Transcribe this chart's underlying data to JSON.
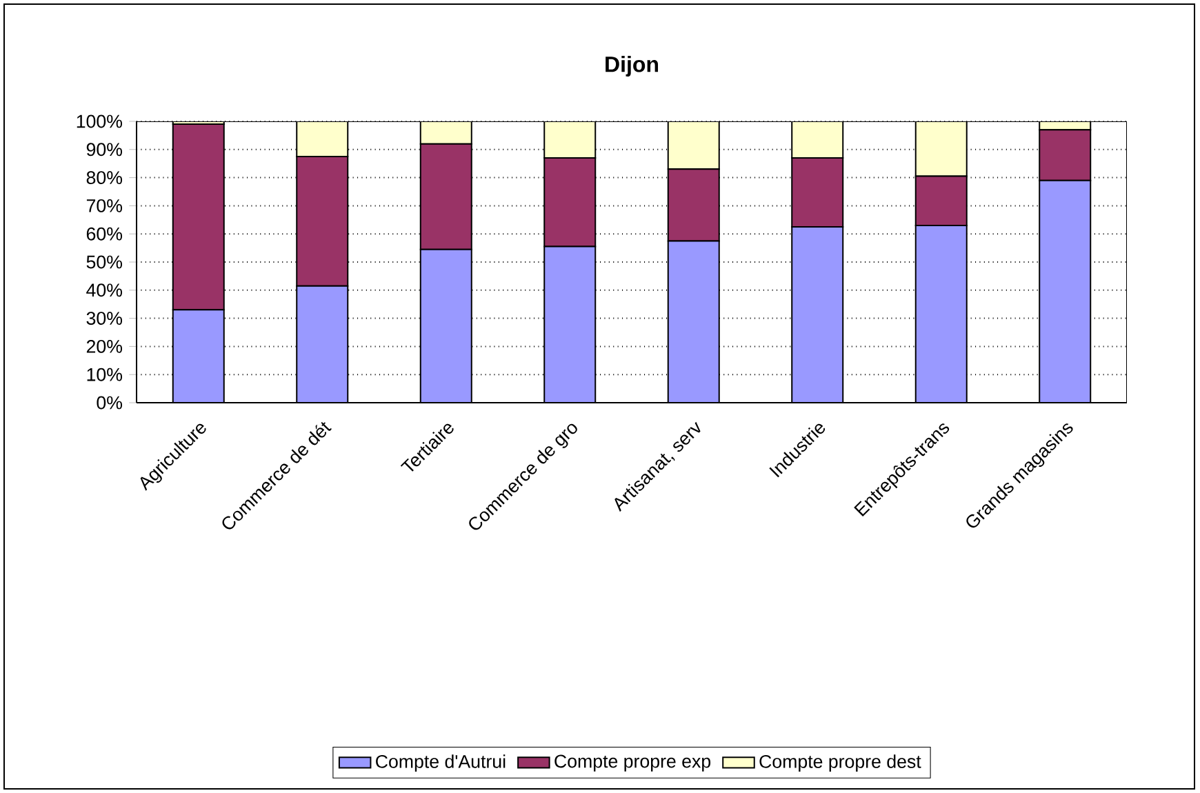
{
  "chart_data": {
    "type": "bar",
    "title": "Dijon",
    "stacked": true,
    "categories": [
      "Agriculture",
      "Commerce de dét",
      "Tertiaire",
      "Commerce de gro",
      "Artisanat, serv",
      "Industrie",
      "Entrepôts-trans",
      "Grands magasins"
    ],
    "series": [
      {
        "name": "Compte d'Autrui",
        "color": "#9999ff",
        "values": [
          33,
          41.5,
          54.5,
          55.5,
          57.5,
          62.5,
          63,
          79
        ]
      },
      {
        "name": "Compte propre exp",
        "color": "#993366",
        "values": [
          66,
          46,
          37.5,
          31.5,
          25.5,
          24.5,
          17.5,
          18
        ]
      },
      {
        "name": "Compte propre dest",
        "color": "#ffffcc",
        "values": [
          1,
          12.5,
          8,
          13,
          17,
          13,
          19.5,
          3
        ]
      }
    ],
    "ylim": [
      0,
      100
    ],
    "yticks": [
      {
        "value": 0,
        "label": "0%"
      },
      {
        "value": 10,
        "label": "10%"
      },
      {
        "value": 20,
        "label": "20%"
      },
      {
        "value": 30,
        "label": "30%"
      },
      {
        "value": 40,
        "label": "40%"
      },
      {
        "value": 50,
        "label": "50%"
      },
      {
        "value": 60,
        "label": "60%"
      },
      {
        "value": 70,
        "label": "70%"
      },
      {
        "value": 80,
        "label": "80%"
      },
      {
        "value": 90,
        "label": "90%"
      },
      {
        "value": 100,
        "label": "100%"
      }
    ],
    "grid": "y",
    "legend": "bottom"
  }
}
